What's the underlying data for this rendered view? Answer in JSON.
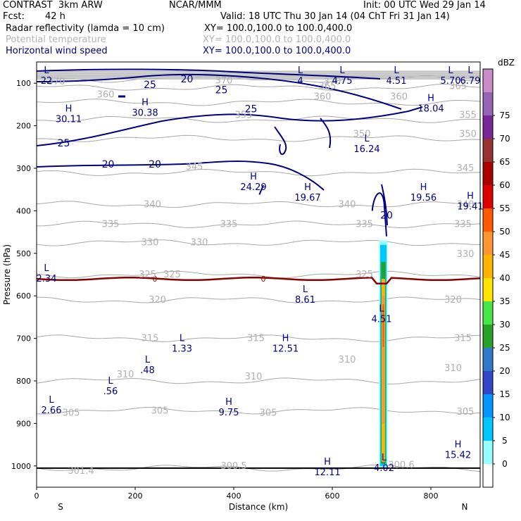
{
  "header": {
    "model": "CONTRAST  3km ARW",
    "org": "NCAR/MMM",
    "init": "Init: 00 UTC Wed 29 Jan 14",
    "fcst_label": "Fcst:",
    "fcst_value": "42 h",
    "valid": "Valid: 18 UTC Thu 30 Jan 14 (04 ChT Fri 31 Jan 14)",
    "fields": [
      {
        "name": "Radar reflectivity (lamda = 10 cm)",
        "xy": "XY= 100.0,100.0 to 100.0,400.0",
        "color": "#000000"
      },
      {
        "name": "Potential temperature",
        "xy": "XY= 100.0,100.0 to 100.0,400.0",
        "color": "#b4b4b4"
      },
      {
        "name": "Horizontal wind speed",
        "xy": "XY= 100.0,100.0 to 100.0,400.0",
        "color": "#000080"
      }
    ]
  },
  "chart_data": {
    "type": "cross-section",
    "title": "Radar reflectivity / Potential temperature / Horizontal wind speed",
    "xlabel": "Distance (km)",
    "ylabel": "Pressure (hPa)",
    "xlim": [
      0,
      900
    ],
    "ylim": [
      1050,
      50
    ],
    "x_ticks": [
      0,
      200,
      400,
      600,
      800
    ],
    "y_ticks": [
      100,
      200,
      300,
      400,
      500,
      600,
      700,
      800,
      900,
      1000
    ],
    "x_end_labels": {
      "left": "S",
      "right": "N"
    },
    "colorbar": {
      "unit": "dBZ",
      "levels": [
        0,
        5,
        10,
        15,
        20,
        25,
        30,
        35,
        40,
        45,
        50,
        55,
        60,
        65,
        70,
        75
      ],
      "colors": [
        "#ffffff",
        "#96ffff",
        "#00c8ff",
        "#0096ff",
        "#3246c8",
        "#3278c8",
        "#28a028",
        "#46e646",
        "#ffe600",
        "#ffb400",
        "#ff9632",
        "#ff5a00",
        "#dc0000",
        "#aa0000",
        "#963232",
        "#782896",
        "#9664b4",
        "#c88cc8"
      ]
    },
    "theta_isentropes": [
      {
        "value": 300.5,
        "p": 1005
      },
      {
        "value": 305,
        "p": 870
      },
      {
        "value": 310,
        "p": 800
      },
      {
        "value": 315,
        "p": 700
      },
      {
        "value": 320,
        "p": 610
      },
      {
        "value": 325,
        "p": 550
      },
      {
        "value": 330,
        "p": 475
      },
      {
        "value": 335,
        "p": 432
      },
      {
        "value": 340,
        "p": 385
      },
      {
        "value": 345,
        "p": 310
      },
      {
        "value": 350,
        "p": 230
      },
      {
        "value": 355,
        "p": 185
      },
      {
        "value": 360,
        "p": 145
      },
      {
        "value": 365,
        "p": 110
      },
      {
        "value": 370,
        "p": 90
      }
    ],
    "theta_labels": [
      {
        "text": "370",
        "x": 40,
        "p": 96
      },
      {
        "text": "370",
        "x": 380,
        "p": 94
      },
      {
        "text": "370",
        "x": 600,
        "p": 96
      },
      {
        "text": "365",
        "x": 590,
        "p": 107
      },
      {
        "text": "365",
        "x": 855,
        "p": 107
      },
      {
        "text": "360",
        "x": 140,
        "p": 127
      },
      {
        "text": "360",
        "x": 580,
        "p": 132
      },
      {
        "text": "360",
        "x": 735,
        "p": 132
      },
      {
        "text": "355",
        "x": 420,
        "p": 175
      },
      {
        "text": "355",
        "x": 875,
        "p": 175
      },
      {
        "text": "350",
        "x": 660,
        "p": 220
      },
      {
        "text": "350",
        "x": 875,
        "p": 220
      },
      {
        "text": "345",
        "x": 320,
        "p": 297
      },
      {
        "text": "345",
        "x": 870,
        "p": 300
      },
      {
        "text": "340",
        "x": 235,
        "p": 385
      },
      {
        "text": "340",
        "x": 630,
        "p": 385
      },
      {
        "text": "340",
        "x": 870,
        "p": 385
      },
      {
        "text": "335",
        "x": 150,
        "p": 432
      },
      {
        "text": "335",
        "x": 390,
        "p": 432
      },
      {
        "text": "335",
        "x": 665,
        "p": 432
      },
      {
        "text": "335",
        "x": 865,
        "p": 432
      },
      {
        "text": "330",
        "x": 230,
        "p": 475
      },
      {
        "text": "330",
        "x": 330,
        "p": 475
      },
      {
        "text": "330",
        "x": 870,
        "p": 502
      },
      {
        "text": "325",
        "x": 225,
        "p": 550
      },
      {
        "text": "325",
        "x": 275,
        "p": 550
      },
      {
        "text": "325",
        "x": 665,
        "p": 550
      },
      {
        "text": "320",
        "x": 245,
        "p": 610
      },
      {
        "text": "320",
        "x": 845,
        "p": 610
      },
      {
        "text": "315",
        "x": 230,
        "p": 700
      },
      {
        "text": "315",
        "x": 445,
        "p": 700
      },
      {
        "text": "315",
        "x": 865,
        "p": 700
      },
      {
        "text": "310",
        "x": 630,
        "p": 750
      },
      {
        "text": "310",
        "x": 180,
        "p": 785
      },
      {
        "text": "310",
        "x": 440,
        "p": 790
      },
      {
        "text": "310",
        "x": 845,
        "p": 770
      },
      {
        "text": "305",
        "x": 70,
        "p": 875
      },
      {
        "text": "305",
        "x": 250,
        "p": 870
      },
      {
        "text": "305",
        "x": 470,
        "p": 875
      },
      {
        "text": "305",
        "x": 870,
        "p": 873
      },
      {
        "text": "300.5",
        "x": 400,
        "p": 1000
      },
      {
        "text": "300.6",
        "x": 740,
        "p": 998
      },
      {
        "text": "301.4",
        "x": 90,
        "p": 1012
      }
    ],
    "wind_speed_labels": [
      {
        "text": "20",
        "x": 305,
        "p": 90
      },
      {
        "text": "25",
        "x": 230,
        "p": 103
      },
      {
        "text": "25",
        "x": 375,
        "p": 115
      },
      {
        "text": "25",
        "x": 435,
        "p": 160
      },
      {
        "text": "25",
        "x": 55,
        "p": 240
      },
      {
        "text": "20",
        "x": 145,
        "p": 290
      },
      {
        "text": "20",
        "x": 240,
        "p": 290
      },
      {
        "text": "20",
        "x": 710,
        "p": 410
      }
    ],
    "freezing_level": {
      "label": "0",
      "p": 560
    },
    "extrema": [
      {
        "type": "L",
        "value": "22",
        "x": 0,
        "p": 80
      },
      {
        "type": "L",
        "value": "4",
        "x": 535,
        "p": 80
      },
      {
        "type": "L",
        "value": "4.75",
        "x": 620,
        "p": 80
      },
      {
        "type": "L",
        "value": "4.51",
        "x": 730,
        "p": 80
      },
      {
        "type": "L",
        "value": "5.70",
        "x": 840,
        "p": 80
      },
      {
        "type": "L",
        "value": "6.79",
        "x": 930,
        "p": 80
      },
      {
        "type": "H",
        "value": "30.11",
        "x": 65,
        "p": 170
      },
      {
        "type": "H",
        "value": "30.38",
        "x": 220,
        "p": 155
      },
      {
        "type": "H",
        "value": "18.04",
        "x": 800,
        "p": 145
      },
      {
        "type": "L",
        "value": "16.24",
        "x": 670,
        "p": 240
      },
      {
        "type": "H",
        "value": "24.29",
        "x": 440,
        "p": 330
      },
      {
        "type": "H",
        "value": "19.67",
        "x": 550,
        "p": 355
      },
      {
        "type": "H",
        "value": "19.56",
        "x": 785,
        "p": 355
      },
      {
        "type": "H",
        "value": "19.41",
        "x": 890,
        "p": 375
      },
      {
        "type": "L",
        "value": "2.34",
        "x": 0,
        "p": 545
      },
      {
        "type": "L",
        "value": "8.61",
        "x": 545,
        "p": 595
      },
      {
        "type": "L",
        "value": "4.51",
        "x": 700,
        "p": 640
      },
      {
        "type": "L",
        "value": "1.33",
        "x": 295,
        "p": 710
      },
      {
        "type": "H",
        "value": "12.51",
        "x": 505,
        "p": 710
      },
      {
        "type": "L",
        "value": ".48",
        "x": 225,
        "p": 760
      },
      {
        "type": "L",
        "value": ".56",
        "x": 150,
        "p": 810
      },
      {
        "type": "L",
        "value": "2.66",
        "x": 30,
        "p": 855
      },
      {
        "type": "H",
        "value": "9.75",
        "x": 390,
        "p": 860
      },
      {
        "type": "H",
        "value": "15.42",
        "x": 855,
        "p": 960
      },
      {
        "type": "L",
        "value": "4.02",
        "x": 705,
        "p": 990
      },
      {
        "type": "H",
        "value": "12.11",
        "x": 590,
        "p": 1000
      }
    ]
  }
}
